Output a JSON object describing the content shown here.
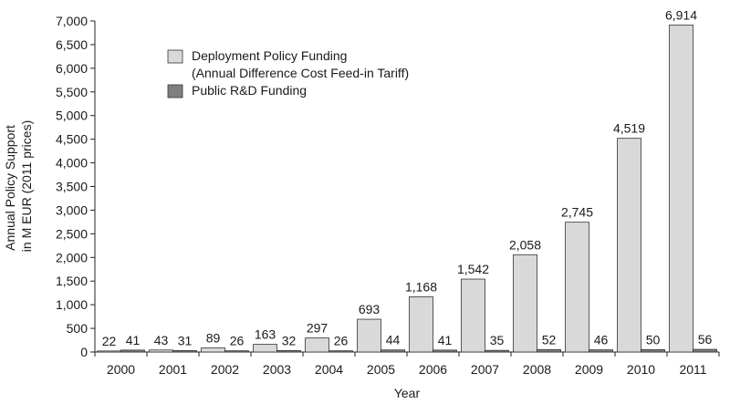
{
  "chart_data": {
    "type": "bar",
    "xlabel": "Year",
    "ylabel_lines": [
      "Annual Policy Support",
      "in M EUR (2011 prices)"
    ],
    "categories": [
      "2000",
      "2001",
      "2002",
      "2003",
      "2004",
      "2005",
      "2006",
      "2007",
      "2008",
      "2009",
      "2010",
      "2011"
    ],
    "series": [
      {
        "name_lines": [
          "Deployment Policy Funding",
          "(Annual Difference Cost Feed-in Tariff)"
        ],
        "color": "#d9d9d9",
        "values": [
          22,
          43,
          89,
          163,
          297,
          693,
          1168,
          1542,
          2058,
          2745,
          4519,
          6914
        ],
        "labels": [
          "22",
          "43",
          "89",
          "163",
          "297",
          "693",
          "1,168",
          "1,542",
          "2,058",
          "2,745",
          "4,519",
          "6,914"
        ]
      },
      {
        "name_lines": [
          "Public R&D Funding"
        ],
        "color": "#7f7f7f",
        "values": [
          41,
          31,
          26,
          32,
          26,
          44,
          41,
          35,
          52,
          46,
          50,
          56
        ],
        "labels": [
          "41",
          "31",
          "26",
          "32",
          "26",
          "44",
          "41",
          "35",
          "52",
          "46",
          "50",
          "56"
        ]
      }
    ],
    "ylim": [
      0,
      7000
    ],
    "yticks": [
      0,
      500,
      1000,
      1500,
      2000,
      2500,
      3000,
      3500,
      4000,
      4500,
      5000,
      5500,
      6000,
      6500,
      7000
    ],
    "ytick_labels": [
      "0",
      "500",
      "1,000",
      "1,500",
      "2,000",
      "2,500",
      "3,000",
      "3,500",
      "4,000",
      "4,500",
      "5,000",
      "5,500",
      "6,000",
      "6,500",
      "7,000"
    ],
    "grid": false,
    "legend_position": "top-left"
  }
}
